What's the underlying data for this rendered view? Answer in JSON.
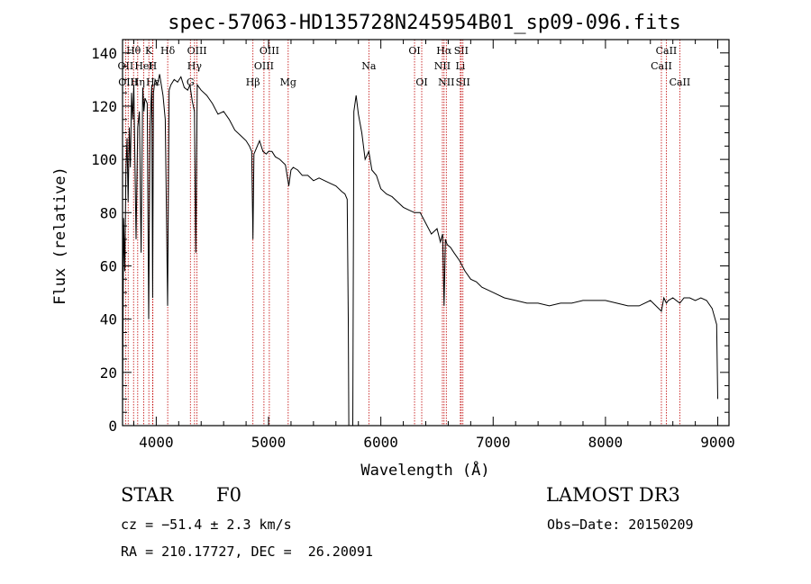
{
  "chart_data": {
    "type": "line",
    "title": "spec-57063-HD135728N245954B01_sp09-096.fits",
    "xlabel": "Wavelength (Å)",
    "ylabel": "Flux (relative)",
    "xlim": [
      3700,
      9100
    ],
    "ylim": [
      0,
      145
    ],
    "x_ticks": [
      4000,
      5000,
      6000,
      7000,
      8000,
      9000
    ],
    "y_ticks": [
      0,
      20,
      40,
      60,
      80,
      100,
      120,
      140
    ],
    "series": [
      {
        "name": "flux",
        "x": [
          3700,
          3710,
          3720,
          3730,
          3740,
          3750,
          3760,
          3770,
          3780,
          3790,
          3800,
          3820,
          3835,
          3850,
          3865,
          3880,
          3890,
          3900,
          3920,
          3933,
          3945,
          3960,
          3968,
          3975,
          3990,
          4010,
          4030,
          4060,
          4080,
          4101,
          4115,
          4130,
          4160,
          4190,
          4220,
          4250,
          4280,
          4300,
          4320,
          4340,
          4352,
          4365,
          4400,
          4450,
          4500,
          4550,
          4600,
          4650,
          4700,
          4750,
          4800,
          4830,
          4850,
          4861,
          4870,
          4890,
          4920,
          4950,
          4980,
          5000,
          5030,
          5060,
          5100,
          5150,
          5180,
          5200,
          5220,
          5260,
          5300,
          5350,
          5400,
          5450,
          5500,
          5550,
          5600,
          5650,
          5680,
          5700,
          5710,
          5715,
          5730,
          5740,
          5750,
          5760,
          5780,
          5800,
          5830,
          5860,
          5893,
          5920,
          5960,
          6000,
          6050,
          6100,
          6150,
          6200,
          6250,
          6300,
          6350,
          6400,
          6450,
          6500,
          6530,
          6550,
          6563,
          6575,
          6590,
          6620,
          6650,
          6700,
          6750,
          6800,
          6850,
          6900,
          6950,
          7000,
          7100,
          7200,
          7300,
          7400,
          7500,
          7600,
          7700,
          7800,
          7900,
          8000,
          8100,
          8200,
          8300,
          8400,
          8498,
          8520,
          8542,
          8560,
          8600,
          8662,
          8700,
          8750,
          8800,
          8850,
          8900,
          8950,
          8990,
          9000
        ],
        "values": [
          5,
          78,
          58,
          95,
          108,
          84,
          112,
          97,
          125,
          115,
          128,
          70,
          112,
          118,
          65,
          127,
          118,
          123,
          121,
          40,
          112,
          128,
          48,
          125,
          130,
          128,
          132,
          124,
          115,
          45,
          126,
          128,
          130,
          129,
          131,
          127,
          126,
          128,
          122,
          118,
          65,
          128,
          126,
          124,
          121,
          117,
          118,
          115,
          111,
          109,
          107,
          105,
          103,
          70,
          102,
          104,
          107,
          103,
          102,
          103,
          103,
          101,
          100,
          98,
          90,
          96,
          97,
          96,
          94,
          94,
          92,
          93,
          92,
          91,
          90,
          88,
          87,
          85,
          40,
          0,
          0,
          0,
          0,
          118,
          124,
          117,
          110,
          100,
          103,
          96,
          94,
          89,
          87,
          86,
          84,
          82,
          81,
          80,
          80,
          76,
          72,
          74,
          69,
          72,
          45,
          70,
          68,
          67,
          65,
          62,
          58,
          55,
          54,
          52,
          51,
          50,
          48,
          47,
          46,
          46,
          45,
          46,
          46,
          47,
          47,
          47,
          46,
          45,
          45,
          47,
          43,
          48,
          46,
          47,
          48,
          46,
          48,
          48,
          47,
          48,
          47,
          44,
          38,
          10
        ]
      }
    ],
    "spectral_lines": [
      {
        "label": "Hθ",
        "x": 3798,
        "row": 1
      },
      {
        "label": "K",
        "x": 3934,
        "row": 1
      },
      {
        "label": "Hδ",
        "x": 4102,
        "row": 1
      },
      {
        "label": "OII",
        "x": 3727,
        "row": 2
      },
      {
        "label": "HeI",
        "x": 3889,
        "row": 2
      },
      {
        "label": "H",
        "x": 3968,
        "row": 2
      },
      {
        "label": "OIII",
        "x": 3750,
        "row": 3
      },
      {
        "label": "Hη",
        "x": 3835,
        "row": 3
      },
      {
        "label": "Hε",
        "x": 3970,
        "row": 3
      },
      {
        "label": "OIII",
        "x": 4363,
        "row": 1
      },
      {
        "label": "Hγ",
        "x": 4341,
        "row": 2
      },
      {
        "label": "G",
        "x": 4304,
        "row": 3
      },
      {
        "label": "OIII",
        "x": 5007,
        "row": 1
      },
      {
        "label": "OIII",
        "x": 4959,
        "row": 2
      },
      {
        "label": "Hβ",
        "x": 4861,
        "row": 3
      },
      {
        "label": "Mg",
        "x": 5175,
        "row": 3
      },
      {
        "label": "Na",
        "x": 5893,
        "row": 2
      },
      {
        "label": "OI",
        "x": 6300,
        "row": 1
      },
      {
        "label": "OI",
        "x": 6364,
        "row": 3
      },
      {
        "label": "Hα",
        "x": 6563,
        "row": 1
      },
      {
        "label": "SII",
        "x": 6716,
        "row": 1
      },
      {
        "label": "NII",
        "x": 6548,
        "row": 2
      },
      {
        "label": "Li",
        "x": 6708,
        "row": 2
      },
      {
        "label": "NII",
        "x": 6583,
        "row": 3
      },
      {
        "label": "SII",
        "x": 6731,
        "row": 3
      },
      {
        "label": "CaII",
        "x": 8542,
        "row": 1
      },
      {
        "label": "CaII",
        "x": 8498,
        "row": 2
      },
      {
        "label": "CaII",
        "x": 8662,
        "row": 3
      }
    ]
  },
  "info": {
    "object_class": "STAR",
    "subclass": "F0",
    "survey": "LAMOST DR3",
    "cz": "cz = −51.4 ± 2.3 km/s",
    "obs_date": "Obs−Date: 20150209",
    "coords": "RA = 210.17727, DEC =  26.20091"
  }
}
